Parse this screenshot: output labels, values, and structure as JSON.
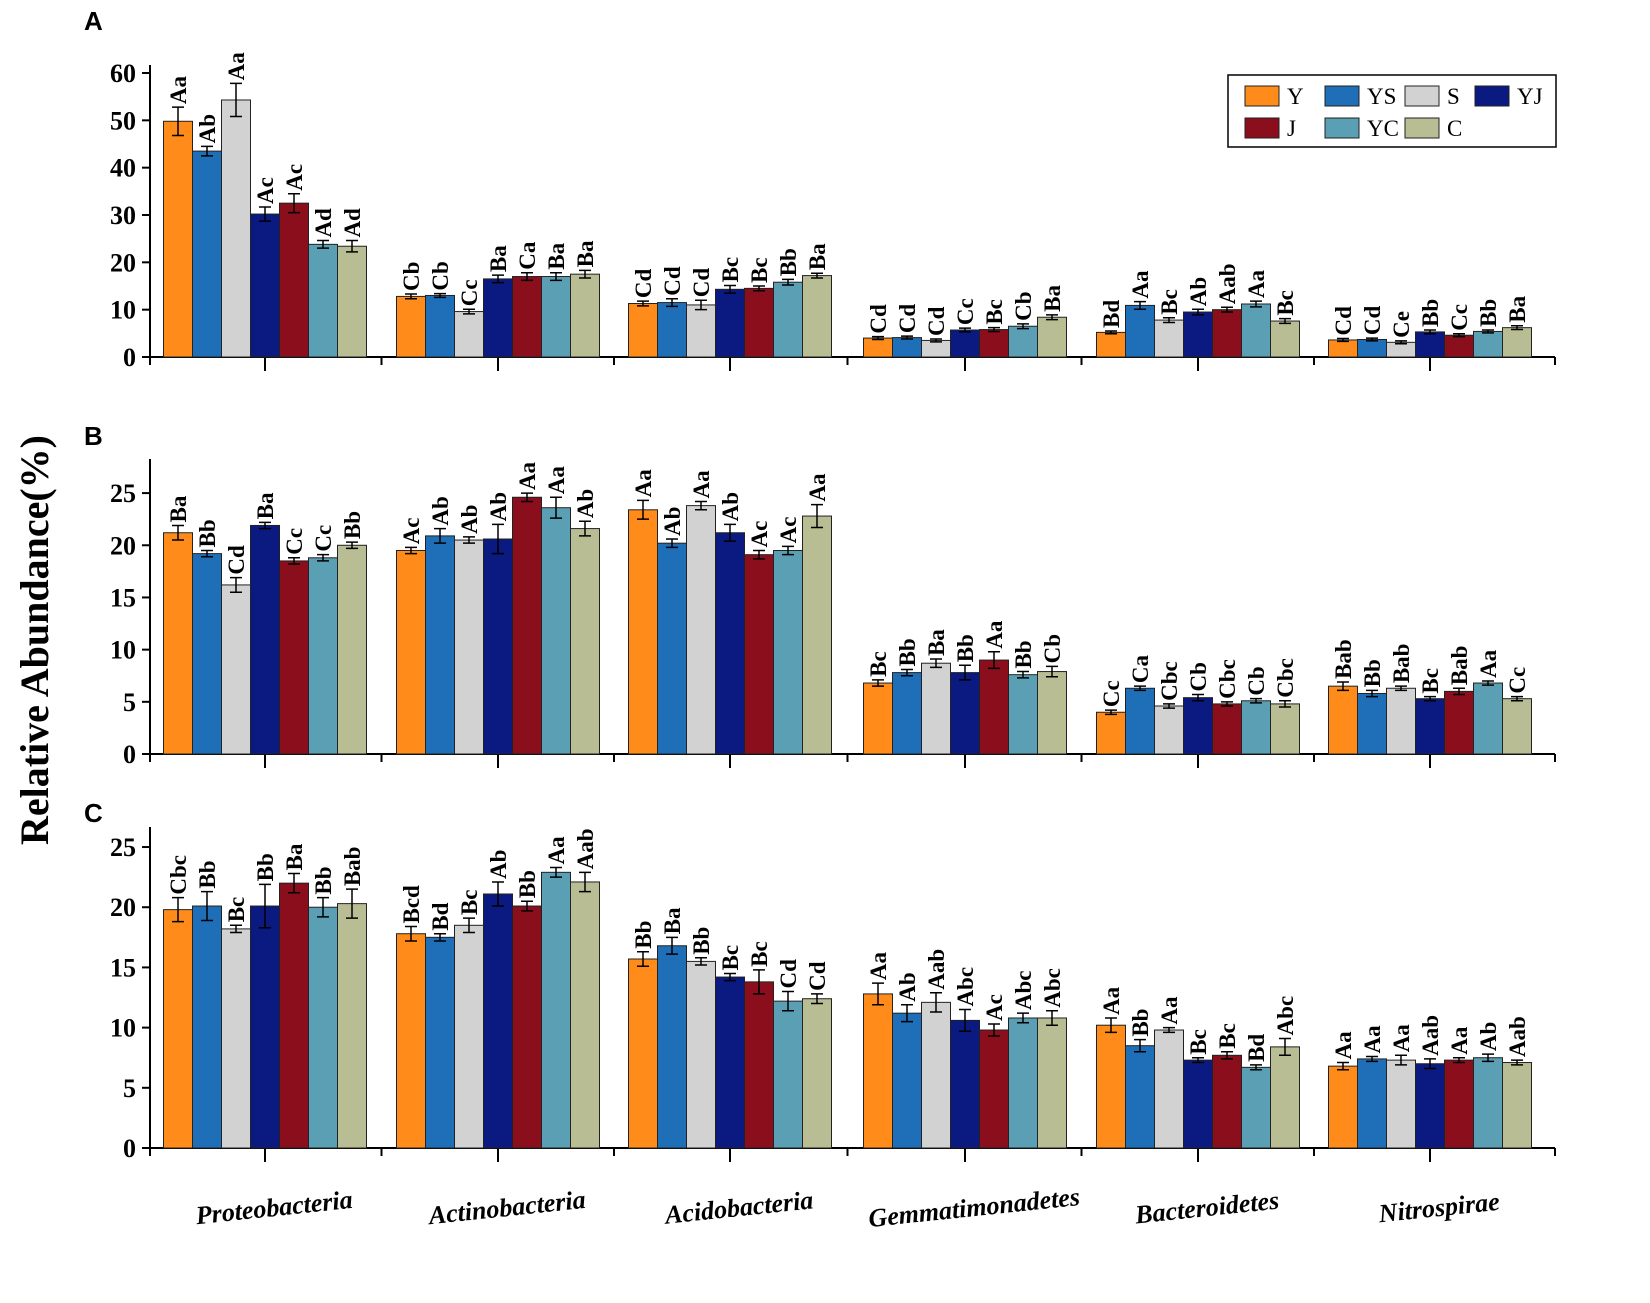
{
  "figure": {
    "ylabel": "Relative Abundance(%)",
    "legend_position": "top-right",
    "series_names": [
      "Y",
      "YS",
      "S",
      "YJ",
      "J",
      "YC",
      "C"
    ],
    "series_colors": [
      "#ff8c1a",
      "#1f6fb8",
      "#d2d2d2",
      "#0a1a80",
      "#8b0e1c",
      "#5b9fb4",
      "#b9bd94"
    ]
  },
  "chart_data": [
    {
      "type": "bar",
      "panel": "A",
      "ylim": [
        0,
        60
      ],
      "yticks": [
        0,
        10,
        20,
        30,
        40,
        50,
        60
      ],
      "categories": [
        "Proteobacteria",
        "Actinobacteria",
        "Acidobacteria",
        "Gemmatimonadetes",
        "Bacteroidetes",
        "Nitrospirae"
      ],
      "series": [
        {
          "name": "Y",
          "values": [
            49.8,
            12.8,
            11.3,
            4.0,
            5.2,
            3.6
          ],
          "errors": [
            3.0,
            0.5,
            0.5,
            0.3,
            0.3,
            0.3
          ],
          "labels": [
            "Aa",
            "Cb",
            "Cd",
            "Cd",
            "Bd",
            "Cd"
          ]
        },
        {
          "name": "YS",
          "values": [
            43.5,
            13.0,
            11.5,
            4.1,
            10.9,
            3.7
          ],
          "errors": [
            1.0,
            0.4,
            0.8,
            0.3,
            0.8,
            0.3
          ],
          "labels": [
            "Ab",
            "Cb",
            "Cd",
            "Cd",
            "Aa",
            "Cd"
          ]
        },
        {
          "name": "S",
          "values": [
            54.3,
            9.6,
            11.0,
            3.5,
            7.8,
            3.1
          ],
          "errors": [
            3.5,
            0.5,
            1.0,
            0.3,
            0.5,
            0.3
          ],
          "labels": [
            "Aa",
            "Cc",
            "Cd",
            "Cd",
            "Bc",
            "Ce"
          ]
        },
        {
          "name": "YJ",
          "values": [
            30.2,
            16.5,
            14.3,
            5.7,
            9.5,
            5.3
          ],
          "errors": [
            1.5,
            0.8,
            0.8,
            0.4,
            0.6,
            0.4
          ],
          "labels": [
            "Ac",
            "Ba",
            "Bc",
            "Cc",
            "Ab",
            "Bb"
          ]
        },
        {
          "name": "J",
          "values": [
            32.5,
            17.0,
            14.5,
            5.8,
            10.0,
            4.6
          ],
          "errors": [
            2.0,
            0.8,
            0.5,
            0.4,
            0.5,
            0.3
          ],
          "labels": [
            "Ac",
            "Ca",
            "Bc",
            "Bc",
            "Aab",
            "Cc"
          ]
        },
        {
          "name": "YC",
          "values": [
            23.8,
            17.0,
            15.8,
            6.5,
            11.2,
            5.4
          ],
          "errors": [
            0.8,
            0.8,
            0.6,
            0.5,
            0.6,
            0.3
          ],
          "labels": [
            "Ad",
            "Ba",
            "Bb",
            "Cb",
            "Aa",
            "Bb"
          ]
        },
        {
          "name": "C",
          "values": [
            23.4,
            17.5,
            17.2,
            8.4,
            7.6,
            6.2
          ],
          "errors": [
            1.2,
            0.8,
            0.5,
            0.5,
            0.5,
            0.4
          ],
          "labels": [
            "Ad",
            "Ba",
            "Ba",
            "Ba",
            "Bc",
            "Ba"
          ]
        }
      ]
    },
    {
      "type": "bar",
      "panel": "B",
      "ylim": [
        0,
        27.5
      ],
      "yticks": [
        0,
        5,
        10,
        15,
        20,
        25
      ],
      "categories": [
        "Proteobacteria",
        "Actinobacteria",
        "Acidobacteria",
        "Gemmatimonadetes",
        "Bacteroidetes",
        "Nitrospirae"
      ],
      "series": [
        {
          "name": "Y",
          "values": [
            21.2,
            19.5,
            23.4,
            6.8,
            4.0,
            6.5
          ],
          "errors": [
            0.7,
            0.3,
            0.9,
            0.3,
            0.2,
            0.4
          ],
          "labels": [
            "Ba",
            "Ac",
            "Aa",
            "Bc",
            "Cc",
            "Bab"
          ]
        },
        {
          "name": "YS",
          "values": [
            19.2,
            20.9,
            20.2,
            7.8,
            6.3,
            5.8
          ],
          "errors": [
            0.3,
            0.7,
            0.4,
            0.3,
            0.2,
            0.3
          ],
          "labels": [
            "Bb",
            "Ab",
            "Ab",
            "Bb",
            "Ca",
            "Bb"
          ]
        },
        {
          "name": "S",
          "values": [
            16.2,
            20.5,
            23.8,
            8.7,
            4.6,
            6.3
          ],
          "errors": [
            0.7,
            0.3,
            0.4,
            0.4,
            0.2,
            0.2
          ],
          "labels": [
            "Cd",
            "Ab",
            "Aa",
            "Ba",
            "Cbc",
            "Bab"
          ]
        },
        {
          "name": "YJ",
          "values": [
            21.9,
            20.6,
            21.2,
            7.8,
            5.4,
            5.3
          ],
          "errors": [
            0.3,
            1.4,
            0.8,
            0.7,
            0.3,
            0.2
          ],
          "labels": [
            "Ba",
            "Ab",
            "Ab",
            "Bb",
            "Cb",
            "Bc"
          ]
        },
        {
          "name": "J",
          "values": [
            18.5,
            24.6,
            19.1,
            9.0,
            4.8,
            6.0
          ],
          "errors": [
            0.3,
            0.4,
            0.4,
            0.8,
            0.2,
            0.3
          ],
          "labels": [
            "Cc",
            "Aa",
            "Ac",
            "Aa",
            "Cbc",
            "Bab"
          ]
        },
        {
          "name": "YC",
          "values": [
            18.8,
            23.6,
            19.5,
            7.6,
            5.1,
            6.8
          ],
          "errors": [
            0.3,
            1.0,
            0.4,
            0.3,
            0.2,
            0.2
          ],
          "labels": [
            "Cc",
            "Aa",
            "Ac",
            "Bb",
            "Cb",
            "Aa"
          ]
        },
        {
          "name": "C",
          "values": [
            20.0,
            21.6,
            22.8,
            7.9,
            4.8,
            5.3
          ],
          "errors": [
            0.3,
            0.7,
            1.1,
            0.5,
            0.3,
            0.2
          ],
          "labels": [
            "Bb",
            "Ab",
            "Aa",
            "Cb",
            "Cbc",
            "Cc"
          ]
        }
      ]
    },
    {
      "type": "bar",
      "panel": "C",
      "ylim": [
        0,
        26
      ],
      "yticks": [
        0,
        5,
        10,
        15,
        20,
        25
      ],
      "categories": [
        "Proteobacteria",
        "Actinobacteria",
        "Acidobacteria",
        "Gemmatimonadetes",
        "Bacteroidetes",
        "Nitrospirae"
      ],
      "series": [
        {
          "name": "Y",
          "values": [
            19.8,
            17.8,
            15.7,
            12.8,
            10.2,
            6.8
          ],
          "errors": [
            1.0,
            0.6,
            0.6,
            0.9,
            0.6,
            0.3
          ],
          "labels": [
            "Cbc",
            "Bcd",
            "Bb",
            "Aa",
            "Aa",
            "Aa"
          ]
        },
        {
          "name": "YS",
          "values": [
            20.1,
            17.5,
            16.8,
            11.2,
            8.5,
            7.4
          ],
          "errors": [
            1.2,
            0.3,
            0.7,
            0.7,
            0.5,
            0.2
          ],
          "labels": [
            "Bb",
            "Bd",
            "Ba",
            "Ab",
            "Bb",
            "Aa"
          ]
        },
        {
          "name": "S",
          "values": [
            18.2,
            18.5,
            15.5,
            12.1,
            9.8,
            7.3
          ],
          "errors": [
            0.3,
            0.6,
            0.3,
            0.8,
            0.2,
            0.4
          ],
          "labels": [
            "Bc",
            "Bc",
            "Bb",
            "Aab",
            "Aa",
            "Aa"
          ]
        },
        {
          "name": "YJ",
          "values": [
            20.1,
            21.1,
            14.2,
            10.6,
            7.3,
            7.0
          ],
          "errors": [
            1.8,
            1.0,
            0.3,
            0.9,
            0.2,
            0.4
          ],
          "labels": [
            "Bb",
            "Ab",
            "Bc",
            "Abc",
            "Bc",
            "Aab"
          ]
        },
        {
          "name": "J",
          "values": [
            22.0,
            20.1,
            13.8,
            9.8,
            7.7,
            7.3
          ],
          "errors": [
            0.8,
            0.4,
            1.0,
            0.5,
            0.3,
            0.2
          ],
          "labels": [
            "Ba",
            "Bb",
            "Bc",
            "Ac",
            "Bc",
            "Aa"
          ]
        },
        {
          "name": "YC",
          "values": [
            20.0,
            22.9,
            12.2,
            10.8,
            6.7,
            7.5
          ],
          "errors": [
            0.8,
            0.4,
            0.8,
            0.4,
            0.2,
            0.3
          ],
          "labels": [
            "Bb",
            "Aa",
            "Cd",
            "Abc",
            "Bd",
            "Ab"
          ]
        },
        {
          "name": "C",
          "values": [
            20.3,
            22.1,
            12.4,
            10.8,
            8.4,
            7.1
          ],
          "errors": [
            1.2,
            0.8,
            0.4,
            0.6,
            0.7,
            0.2
          ],
          "labels": [
            "Bab",
            "Aab",
            "Cd",
            "Abc",
            "Abc",
            "Aab"
          ]
        }
      ]
    }
  ]
}
